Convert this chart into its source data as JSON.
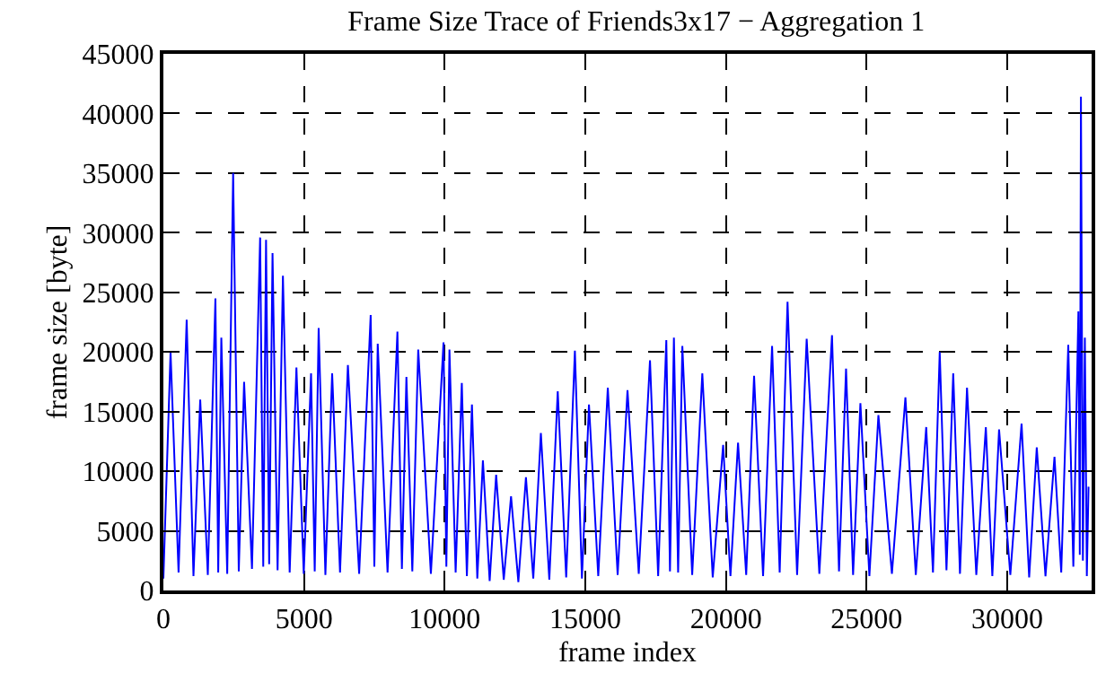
{
  "chart_data": {
    "type": "line",
    "title": "Frame Size Trace of Friends3x17 − Aggregation 1",
    "xlabel": "frame index",
    "ylabel": "frame size [byte]",
    "xlim": [
      0,
      33000
    ],
    "ylim": [
      0,
      45000
    ],
    "xticks": [
      0,
      5000,
      10000,
      15000,
      20000,
      25000,
      30000
    ],
    "yticks": [
      0,
      5000,
      10000,
      15000,
      20000,
      25000,
      30000,
      35000,
      40000,
      45000
    ],
    "grid": true,
    "legend": false,
    "marker": "none",
    "line_style": "solid",
    "series": [
      {
        "color": "#0000ff",
        "x": [
          0,
          255,
          540,
          828,
          1070,
          1310,
          1580,
          1850,
          1950,
          2060,
          2270,
          2480,
          2680,
          2870,
          3150,
          3440,
          3550,
          3650,
          3760,
          3880,
          4060,
          4250,
          4490,
          4730,
          4990,
          5250,
          5380,
          5520,
          5760,
          6000,
          6280,
          6560,
          6960,
          7370,
          7500,
          7620,
          7970,
          8320,
          8480,
          8640,
          8850,
          9060,
          9510,
          9960,
          10060,
          10170,
          10390,
          10610,
          10790,
          10970,
          11160,
          11360,
          11600,
          11830,
          12100,
          12360,
          12620,
          12890,
          13150,
          13420,
          13720,
          14020,
          14320,
          14630,
          14880,
          15130,
          15460,
          15800,
          16150,
          16500,
          16900,
          17300,
          17590,
          17880,
          18010,
          18150,
          18300,
          18450,
          18800,
          19160,
          19530,
          19900,
          20160,
          20430,
          20720,
          21000,
          21320,
          21640,
          21910,
          22190,
          22530,
          22870,
          23320,
          23770,
          24020,
          24270,
          24520,
          24780,
          25100,
          25420,
          25900,
          26380,
          26750,
          27120,
          27360,
          27600,
          27840,
          28080,
          28320,
          28570,
          28900,
          29240,
          29470,
          29710,
          30110,
          30510,
          30780,
          31050,
          31360,
          31680,
          31920,
          32170,
          32350,
          32530,
          32580,
          32620,
          32690,
          32760,
          32830,
          32890
        ],
        "values": [
          1000,
          20000,
          1500,
          22700,
          1200,
          16000,
          1300,
          24500,
          1500,
          21200,
          1400,
          35000,
          1600,
          17500,
          1800,
          29600,
          2000,
          29400,
          2200,
          28300,
          1700,
          26400,
          1500,
          18700,
          1400,
          18200,
          1600,
          22000,
          1300,
          18200,
          1500,
          18900,
          1400,
          23100,
          2000,
          20700,
          1500,
          21700,
          1800,
          17900,
          1600,
          20200,
          1400,
          20800,
          2000,
          20200,
          1500,
          17400,
          1200,
          15600,
          1000,
          10900,
          800,
          9700,
          900,
          7900,
          700,
          9500,
          1000,
          13200,
          900,
          16700,
          1100,
          20100,
          1000,
          15600,
          1200,
          17000,
          1300,
          16800,
          1400,
          19300,
          1200,
          21000,
          1600,
          21200,
          1500,
          20500,
          1300,
          18200,
          1100,
          12200,
          1200,
          12400,
          1300,
          18000,
          1200,
          20500,
          1500,
          24200,
          1300,
          21100,
          1400,
          21400,
          1600,
          18600,
          1300,
          15700,
          1200,
          14700,
          1400,
          16200,
          1300,
          13700,
          1500,
          20000,
          1700,
          18200,
          1400,
          17000,
          1300,
          13700,
          1200,
          13500,
          1300,
          14000,
          1100,
          12000,
          1200,
          11200,
          1500,
          20600,
          2000,
          23400,
          3000,
          41400,
          2500,
          21200,
          1200,
          8700
        ]
      }
    ]
  }
}
